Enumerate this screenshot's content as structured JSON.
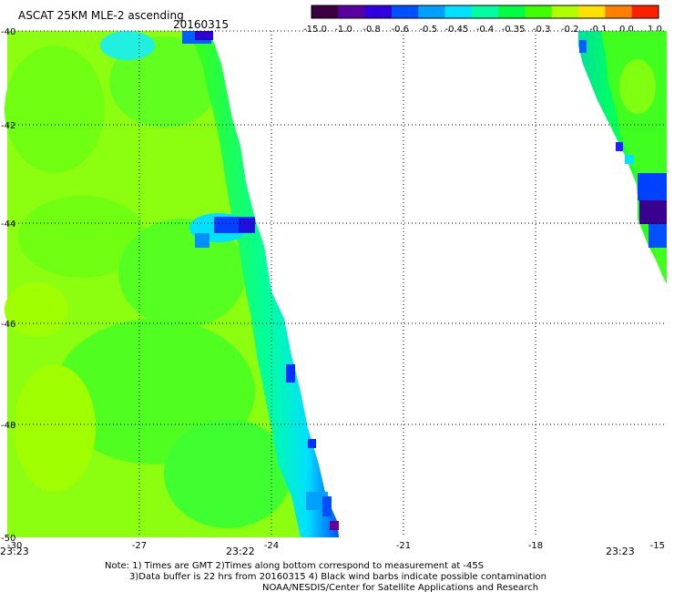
{
  "header": {
    "title": "ASCAT 25KM MLE-2 ascending",
    "date": "20160315"
  },
  "colorbar": {
    "labels": [
      "-15.0",
      "-1.0",
      "-0.8",
      "-0.6",
      "-0.5",
      "-0.45",
      "-0.4",
      "-0.35",
      "-0.3",
      "-0.2",
      "-0.1",
      "0.0",
      "1.0"
    ],
    "colors": [
      "#3a0040",
      "#5a00a0",
      "#3000e0",
      "#0050ff",
      "#00a0ff",
      "#00e0ff",
      "#00ffa0",
      "#00ff40",
      "#40ff00",
      "#b0ff00",
      "#ffe000",
      "#ff8000",
      "#ff2000"
    ]
  },
  "map": {
    "lat_labels": [
      "-40",
      "-42",
      "-44",
      "-46",
      "-48",
      "-50"
    ],
    "lon_labels": [
      "-30",
      "-27",
      "-24",
      "-21",
      "-18",
      "-15"
    ],
    "time_labels": [
      "23:23",
      "23:22",
      "23:23"
    ],
    "time_color": "#c02000"
  },
  "notes": {
    "line1": "Note: 1) Times are GMT 2)Times along bottom correspond to measurement at -45S",
    "line2": "3)Data buffer is 22 hrs from 20160315 4) Black wind barbs indicate possible contamination",
    "line3": "NOAA/NESDIS/Center for Satellite Applications and Research"
  }
}
